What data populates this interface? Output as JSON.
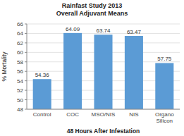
{
  "chart_data": {
    "type": "bar",
    "title": "Rainfast Study 2013",
    "subtitle": "Overall Adjuvant Means",
    "categories": [
      "Control",
      "COC",
      "MSO/NIS",
      "NIS",
      "Organo\nSilicon"
    ],
    "values": [
      54.36,
      64.09,
      63.74,
      63.47,
      57.75
    ],
    "color": "#5b9bd5",
    "xlabel": "48 Hours After Infestation",
    "ylabel": "% Mortality",
    "ylim": [
      48,
      66
    ],
    "yticks": [
      48,
      50,
      52,
      54,
      56,
      58,
      60,
      62,
      64,
      66
    ],
    "grid": true,
    "data_labels": true
  }
}
